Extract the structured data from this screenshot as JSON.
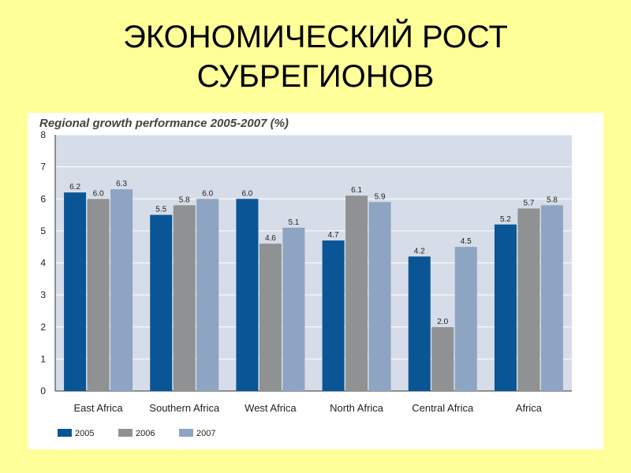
{
  "slide": {
    "title_line1": "ЭКОНОМИЧЕСКИЙ РОСТ",
    "title_line2": "СУБРЕГИОНОВ"
  },
  "chart_data": {
    "type": "bar",
    "title": "Regional growth performance 2005-2007 (%)",
    "categories": [
      "East Africa",
      "Southern Africa",
      "West Africa",
      "North Africa",
      "Central Africa",
      "Africa"
    ],
    "series": [
      {
        "name": "2005",
        "color": "#0a5596",
        "values": [
          6.2,
          5.5,
          6.0,
          4.7,
          4.2,
          5.2
        ]
      },
      {
        "name": "2006",
        "color": "#8f9193",
        "values": [
          6.0,
          5.8,
          4.6,
          6.1,
          2.0,
          5.7
        ]
      },
      {
        "name": "2007",
        "color": "#8da4c2",
        "values": [
          6.3,
          6.0,
          5.1,
          5.9,
          4.5,
          5.8
        ]
      }
    ],
    "yticks": [
      0,
      1,
      2,
      3,
      4,
      5,
      6,
      7,
      8
    ],
    "ylim": [
      0,
      8
    ],
    "grid": true,
    "plot_background": "#d6dde8",
    "legend_position": "bottom-left"
  }
}
